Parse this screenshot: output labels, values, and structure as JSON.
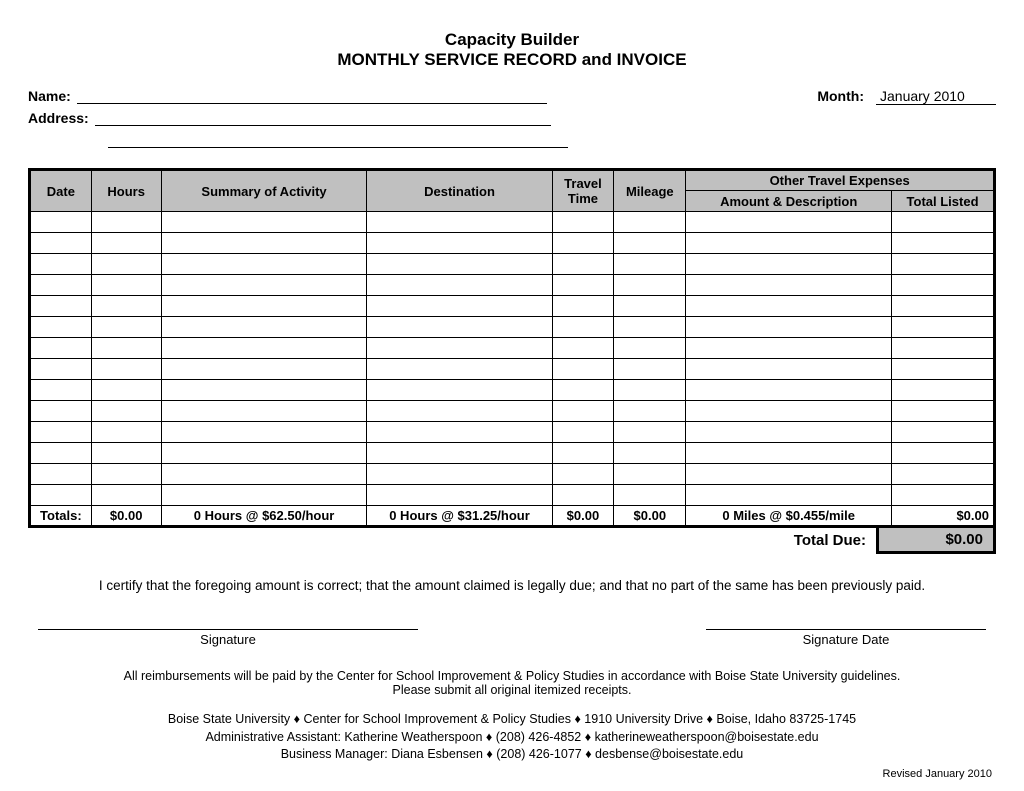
{
  "header": {
    "title1": "Capacity Builder",
    "title2": "MONTHLY SERVICE RECORD and INVOICE"
  },
  "info": {
    "name_label": "Name:",
    "address_label": "Address:",
    "month_label": "Month:",
    "month_value": "January 2010"
  },
  "table": {
    "headers": {
      "date": "Date",
      "hours": "Hours",
      "summary": "Summary of Activity",
      "destination": "Destination",
      "travel_time": "Travel Time",
      "mileage": "Mileage",
      "other_expenses": "Other Travel Expenses",
      "amount_desc": "Amount & Description",
      "total_listed": "Total Listed"
    },
    "row_count": 14,
    "totals": {
      "label": "Totals:",
      "hours": "$0.00",
      "summary": "0 Hours @ $62.50/hour",
      "destination": "0 Hours @ $31.25/hour",
      "travel_time": "$0.00",
      "mileage": "$0.00",
      "amount_desc": "0 Miles @ $0.455/mile",
      "total_listed": "$0.00"
    },
    "due_label": "Total Due:",
    "due_value": "$0.00"
  },
  "certify": "I certify that the foregoing amount is correct; that the amount claimed is legally due; and that no part of the same has been previously paid.",
  "signature": {
    "sig_label": "Signature",
    "date_label": "Signature Date"
  },
  "footer": {
    "reimbursement": "All reimbursements will be paid by the Center for School Improvement & Policy Studies in accordance with Boise State University guidelines.",
    "submit": "Please submit all original itemized receipts.",
    "line1": "Boise State University  ♦  Center for School Improvement & Policy Studies  ♦  1910 University Drive  ♦  Boise, Idaho 83725-1745",
    "line2": "Administrative Assistant:  Katherine Weatherspoon  ♦  (208) 426-4852  ♦  katherineweatherspoon@boisestate.edu",
    "line3": "Business Manager:  Diana Esbensen  ♦  (208) 426-1077  ♦  desbense@boisestate.edu",
    "revised": "Revised January 2010"
  },
  "style": {
    "header_bg": "#c0c0c0",
    "border_color": "#000000",
    "background": "#ffffff",
    "font_family": "Arial",
    "title_fontsize": 17,
    "label_fontsize": 14,
    "table_fontsize": 13,
    "footer_fontsize": 12.5
  }
}
